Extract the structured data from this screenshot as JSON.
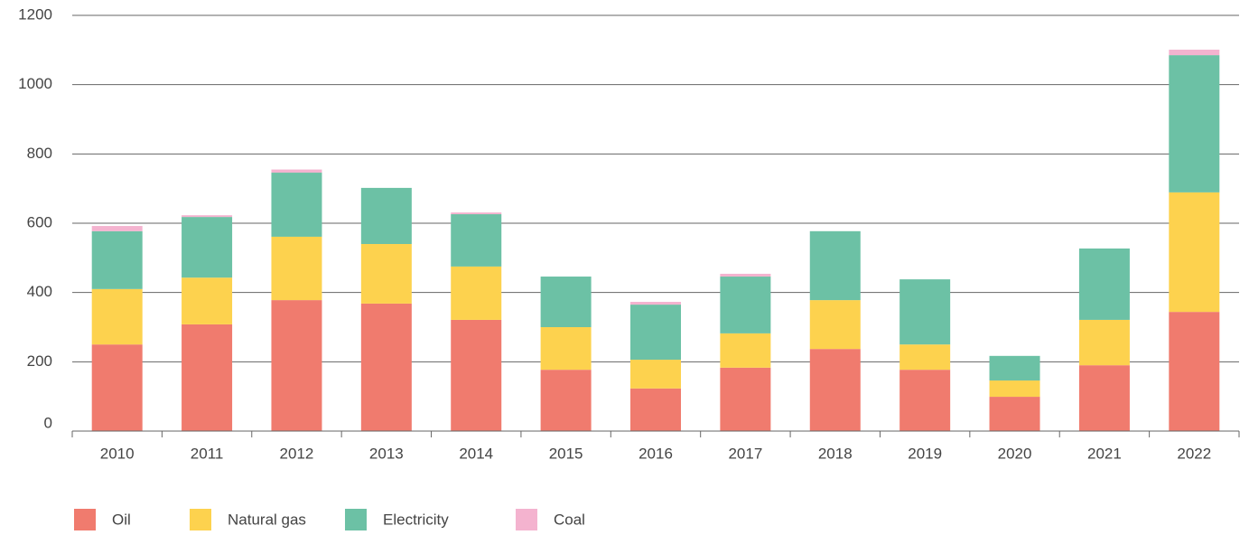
{
  "chart_data": {
    "type": "stacked_bar",
    "categories": [
      "2010",
      "2011",
      "2012",
      "2013",
      "2014",
      "2015",
      "2016",
      "2017",
      "2018",
      "2019",
      "2020",
      "2021",
      "2022"
    ],
    "series": [
      {
        "name": "Oil",
        "color": "#f07b6e",
        "values": [
          250,
          308,
          378,
          368,
          321,
          177,
          123,
          183,
          237,
          177,
          99,
          190,
          344
        ]
      },
      {
        "name": "Natural gas",
        "color": "#fdd24e",
        "values": [
          160,
          135,
          183,
          172,
          154,
          123,
          83,
          99,
          141,
          73,
          47,
          131,
          345
        ]
      },
      {
        "name": "Electricity",
        "color": "#6cc1a5",
        "values": [
          167,
          175,
          185,
          162,
          151,
          146,
          159,
          164,
          199,
          188,
          71,
          206,
          396
        ]
      },
      {
        "name": "Coal",
        "color": "#f4b3cf",
        "values": [
          15,
          5,
          9,
          0,
          5,
          0,
          8,
          8,
          0,
          0,
          0,
          0,
          16
        ]
      }
    ],
    "ylim": [
      0,
      1200
    ],
    "yticks": [
      0,
      200,
      400,
      600,
      800,
      1000,
      1200
    ],
    "grid": true,
    "legend": "bottom-left"
  }
}
